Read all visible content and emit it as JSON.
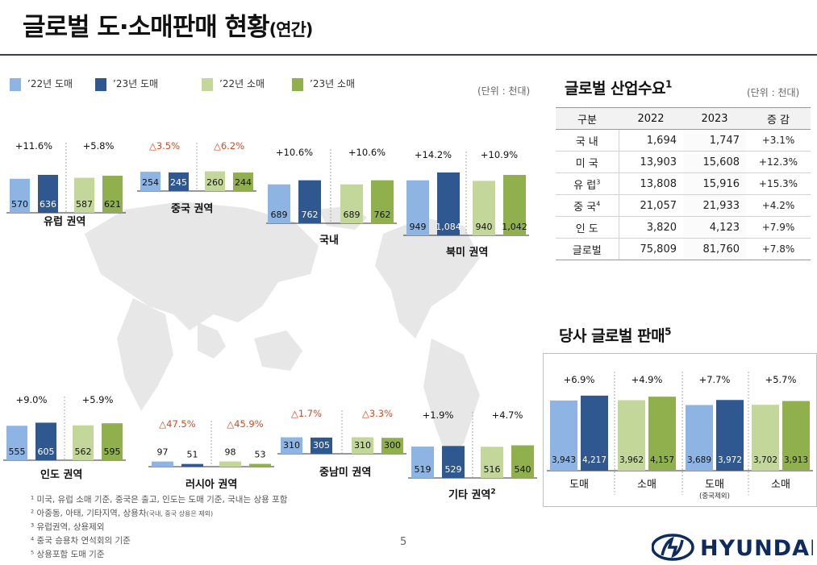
{
  "header": {
    "title_main": "글로벌 도·소매판매 현황",
    "title_sub": "(연간)"
  },
  "legend": [
    {
      "label": "’22년 도매",
      "color": "#8db4e2"
    },
    {
      "label": "’23년 도매",
      "color": "#2f5891"
    },
    {
      "label": "’22년 소매",
      "color": "#c4d79b"
    },
    {
      "label": "’23년 소매",
      "color": "#8fb04d"
    }
  ],
  "unit_left": "(단위 : 천대)",
  "unit_right": "(단위 : 천대)",
  "demand": {
    "title": "글로벌 산업수요",
    "title_sup": "1",
    "headers": [
      "구분",
      "2022",
      "2023",
      "증 감"
    ],
    "rows": [
      {
        "cat": "국 내",
        "sup": "",
        "v2022": "1,694",
        "v2023": "1,747",
        "chg": "+3.1%"
      },
      {
        "cat": "미 국",
        "sup": "",
        "v2022": "13,903",
        "v2023": "15,608",
        "chg": "+12.3%"
      },
      {
        "cat": "유 럽",
        "sup": "3",
        "v2022": "13,808",
        "v2023": "15,916",
        "chg": "+15.3%"
      },
      {
        "cat": "중 국",
        "sup": "4",
        "v2022": "21,057",
        "v2023": "21,933",
        "chg": "+4.2%"
      },
      {
        "cat": "인 도",
        "sup": "",
        "v2022": "3,820",
        "v2023": "4,123",
        "chg": "+7.9%"
      },
      {
        "cat": "글로벌",
        "sup": "",
        "v2022": "75,809",
        "v2023": "81,760",
        "chg": "+7.8%"
      }
    ]
  },
  "sales": {
    "title": "당사 글로벌 판매",
    "title_sup": "5"
  },
  "footnotes": {
    "f1": "¹ 미국, 유럽 소매 기준, 중국은 출고, 인도는 도매 기준, 국내는 상용 포함",
    "f2a": "² 아중동, 아태, 기타지역, 상용차",
    "f2b": "(국내, 중국 상용은 제외)",
    "f3": "³ 유럽권역, 상용제외",
    "f4": "⁴ 중국 승용차 연석회의 기준",
    "f5": "⁵ 상용포함 도매 기준"
  },
  "page_number": "5",
  "brand": "HYUNDAI",
  "chart_data": [
    {
      "type": "bar",
      "name": "유럽 권역",
      "categories": [
        "’22년 도매",
        "’23년 도매",
        "’22년 소매",
        "’23년 소매"
      ],
      "values": [
        570,
        636,
        587,
        621
      ],
      "changes": [
        {
          "text": "+11.6%",
          "neg": false
        },
        {
          "text": "+5.8%",
          "neg": false
        }
      ]
    },
    {
      "type": "bar",
      "name": "중국 권역",
      "categories": [
        "’22년 도매",
        "’23년 도매",
        "’22년 소매",
        "’23년 소매"
      ],
      "values": [
        254,
        245,
        260,
        244
      ],
      "changes": [
        {
          "text": "△3.5%",
          "neg": true
        },
        {
          "text": "△6.2%",
          "neg": true
        }
      ]
    },
    {
      "type": "bar",
      "name": "국내",
      "categories": [
        "’22년 도매",
        "’23년 도매",
        "’22년 소매",
        "’23년 소매"
      ],
      "values": [
        689,
        762,
        689,
        762
      ],
      "changes": [
        {
          "text": "+10.6%",
          "neg": false
        },
        {
          "text": "+10.6%",
          "neg": false
        }
      ]
    },
    {
      "type": "bar",
      "name": "북미 권역",
      "categories": [
        "’22년 도매",
        "’23년 도매",
        "’22년 소매",
        "’23년 소매"
      ],
      "values": [
        949,
        1084,
        940,
        1042
      ],
      "value_labels": [
        "949",
        "1,084",
        "940",
        "1,042"
      ],
      "changes": [
        {
          "text": "+14.2%",
          "neg": false
        },
        {
          "text": "+10.9%",
          "neg": false
        }
      ]
    },
    {
      "type": "bar",
      "name": "인도 권역",
      "categories": [
        "’22년 도매",
        "’23년 도매",
        "’22년 소매",
        "’23년 소매"
      ],
      "values": [
        555,
        605,
        562,
        595
      ],
      "changes": [
        {
          "text": "+9.0%",
          "neg": false
        },
        {
          "text": "+5.9%",
          "neg": false
        }
      ]
    },
    {
      "type": "bar",
      "name": "러시아 권역",
      "categories": [
        "’22년 도매",
        "’23년 도매",
        "’22년 소매",
        "’23년 소매"
      ],
      "values": [
        97,
        51,
        98,
        53
      ],
      "changes": [
        {
          "text": "△47.5%",
          "neg": true
        },
        {
          "text": "△45.9%",
          "neg": true
        }
      ]
    },
    {
      "type": "bar",
      "name": "중남미 권역",
      "categories": [
        "’22년 도매",
        "’23년 도매",
        "’22년 소매",
        "’23년 소매"
      ],
      "values": [
        310,
        305,
        310,
        300
      ],
      "changes": [
        {
          "text": "△1.7%",
          "neg": true
        },
        {
          "text": "△3.3%",
          "neg": true
        }
      ]
    },
    {
      "type": "bar",
      "name": "기타 권역",
      "name_sup": "2",
      "categories": [
        "’22년 도매",
        "’23년 도매",
        "’22년 소매",
        "’23년 소매"
      ],
      "values": [
        519,
        529,
        516,
        540
      ],
      "changes": [
        {
          "text": "+1.9%",
          "neg": false
        },
        {
          "text": "+4.7%",
          "neg": false
        }
      ]
    },
    {
      "type": "bar",
      "name": "당사 글로벌 판매",
      "values": [
        3943,
        4217,
        3962,
        4157,
        3689,
        3972,
        3702,
        3913
      ],
      "value_labels": [
        "3,943",
        "4,217",
        "3,962",
        "4,157",
        "3,689",
        "3,972",
        "3,702",
        "3,913"
      ],
      "group_labels": [
        "도매",
        "소매",
        "도매",
        "소매"
      ],
      "group_sub": "(중국제외)",
      "changes": [
        {
          "text": "+6.9%",
          "neg": false
        },
        {
          "text": "+4.9%",
          "neg": false
        },
        {
          "text": "+7.7%",
          "neg": false
        },
        {
          "text": "+5.7%",
          "neg": false
        }
      ]
    }
  ]
}
